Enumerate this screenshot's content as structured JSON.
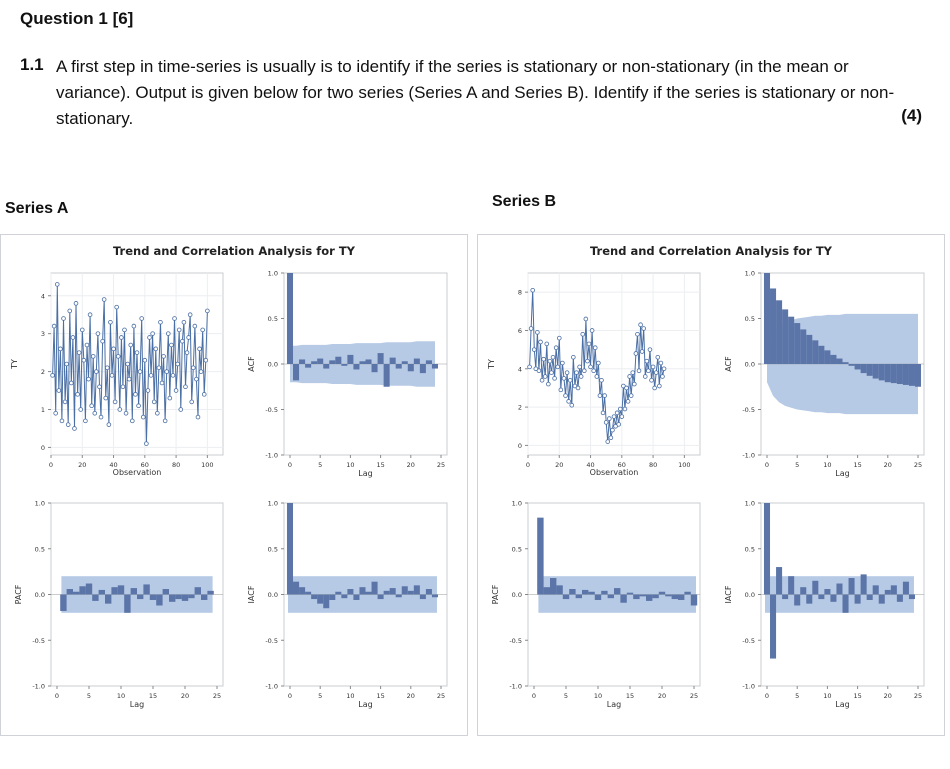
{
  "question": {
    "title": "Question 1 [6]",
    "number": "1.1",
    "body": "A first step in time-series is usually is to identify if the series is stationary or non-stationary (in the mean or variance). Output is given below for two series (Series A and Series B). Identify if the series is stationary or non-stationary.",
    "marks": "(4)"
  },
  "chart_data": [
    {
      "id": "series-a",
      "label": "Series A",
      "title": "Trend and Correlation Analysis for TY",
      "colors": {
        "line": "#4a6fa5",
        "bar": "#5b75a8",
        "band": "#a9c1e0"
      },
      "series_plot": {
        "type": "line",
        "xlabel": "Observation",
        "ylabel": "TY",
        "xlim": [
          0,
          110
        ],
        "ylim": [
          -0.2,
          4.6
        ],
        "xticks": [
          "0",
          "20",
          "40",
          "60",
          "80",
          "100"
        ],
        "yticks": [
          "0",
          "1",
          "2",
          "3",
          "4"
        ],
        "values": [
          1.9,
          3.2,
          0.9,
          4.3,
          1.5,
          2.6,
          0.7,
          3.4,
          1.2,
          2.2,
          0.6,
          3.6,
          1.7,
          2.9,
          0.5,
          3.8,
          1.4,
          2.5,
          1.0,
          3.1,
          2.3,
          0.7,
          2.7,
          1.8,
          3.5,
          1.1,
          2.4,
          0.9,
          2.0,
          3.0,
          1.6,
          0.8,
          2.8,
          3.9,
          1.3,
          2.1,
          0.6,
          3.3,
          1.9,
          2.6,
          1.2,
          3.7,
          2.4,
          1.0,
          2.9,
          1.6,
          3.1,
          0.9,
          2.2,
          1.8,
          2.7,
          0.7,
          3.2,
          1.4,
          2.5,
          1.1,
          2.0,
          3.4,
          0.8,
          2.3,
          0.1,
          1.5,
          2.9,
          1.9,
          3.0,
          1.2,
          2.6,
          0.9,
          2.1,
          3.3,
          1.7,
          2.4,
          0.7,
          2.0,
          3.0,
          1.3,
          2.7,
          1.9,
          3.4,
          1.5,
          2.2,
          3.1,
          1.0,
          2.8,
          3.3,
          1.6,
          2.5,
          2.9,
          3.5,
          1.2,
          2.1,
          3.2,
          1.8,
          0.8,
          2.6,
          2.0,
          3.1,
          1.4,
          2.3,
          3.6
        ]
      },
      "acf": {
        "type": "bar",
        "ylabel": "ACF",
        "xlabel": "Lag",
        "ylim": [
          -1,
          1
        ],
        "yticks": [
          "-1.0",
          "-0.5",
          "0.0",
          "0.5",
          "1.0"
        ],
        "xticks": [
          "0",
          "5",
          "10",
          "15",
          "20",
          "25"
        ],
        "values": [
          1.0,
          -0.18,
          0.05,
          -0.04,
          0.03,
          0.06,
          -0.05,
          0.04,
          0.08,
          -0.02,
          0.1,
          -0.06,
          0.03,
          0.05,
          -0.09,
          0.12,
          -0.25,
          0.07,
          -0.05,
          0.03,
          -0.08,
          0.06,
          -0.1,
          0.04,
          -0.05
        ],
        "band": [
          0.2,
          0.2,
          0.21,
          0.21,
          0.21,
          0.21,
          0.21,
          0.22,
          0.22,
          0.22,
          0.22,
          0.23,
          0.23,
          0.23,
          0.23,
          0.23,
          0.24,
          0.24,
          0.24,
          0.24,
          0.24,
          0.25,
          0.25,
          0.25,
          0.25
        ]
      },
      "pacf": {
        "type": "bar",
        "ylabel": "PACF",
        "xlabel": "Lag",
        "ylim": [
          -1,
          1
        ],
        "yticks": [
          "-1.0",
          "-0.5",
          "0.0",
          "0.5",
          "1.0"
        ],
        "xticks": [
          "0",
          "5",
          "10",
          "15",
          "20",
          "25"
        ],
        "values": [
          -0.18,
          0.06,
          0.03,
          0.09,
          0.12,
          -0.07,
          0.05,
          -0.1,
          0.08,
          0.1,
          -0.2,
          0.07,
          -0.05,
          0.11,
          -0.06,
          -0.12,
          0.06,
          -0.08,
          -0.05,
          -0.07,
          -0.04,
          0.08,
          -0.06,
          0.04
        ],
        "band": 0.2
      },
      "iacf": {
        "type": "bar",
        "ylabel": "IACF",
        "xlabel": "Lag",
        "ylim": [
          -1,
          1
        ],
        "yticks": [
          "-1.0",
          "-0.5",
          "0.0",
          "0.5",
          "1.0"
        ],
        "xticks": [
          "0",
          "5",
          "10",
          "15",
          "20",
          "25"
        ],
        "values": [
          1.0,
          0.14,
          0.08,
          0.03,
          -0.05,
          -0.1,
          -0.15,
          -0.06,
          0.03,
          -0.04,
          0.06,
          -0.06,
          0.08,
          0.03,
          0.14,
          -0.05,
          0.04,
          0.07,
          -0.03,
          0.09,
          0.04,
          0.1,
          -0.05,
          0.06,
          -0.03
        ],
        "band": 0.2
      }
    },
    {
      "id": "series-b",
      "label": "Series B",
      "title": "Trend and Correlation Analysis for TY",
      "colors": {
        "line": "#4a6fa5",
        "bar": "#5b75a8",
        "band": "#a9c1e0"
      },
      "series_plot": {
        "type": "line",
        "xlabel": "Observation",
        "ylabel": "TY",
        "xlim": [
          0,
          110
        ],
        "ylim": [
          -0.5,
          9.0
        ],
        "xticks": [
          "0",
          "20",
          "40",
          "60",
          "80",
          "100"
        ],
        "yticks": [
          "0",
          "2",
          "4",
          "6",
          "8"
        ],
        "values": [
          4.1,
          6.1,
          8.1,
          5.0,
          4.0,
          5.9,
          3.9,
          5.4,
          3.4,
          4.5,
          3.6,
          5.3,
          3.2,
          4.4,
          3.8,
          4.6,
          3.5,
          5.1,
          4.1,
          5.6,
          2.9,
          4.3,
          3.5,
          2.6,
          3.8,
          2.3,
          3.4,
          2.1,
          4.6,
          3.1,
          3.8,
          3.0,
          4.1,
          3.6,
          5.8,
          3.9,
          6.6,
          4.4,
          5.3,
          4.1,
          6.0,
          3.9,
          5.1,
          3.6,
          4.3,
          2.6,
          3.4,
          1.7,
          2.6,
          1.2,
          0.2,
          1.4,
          0.4,
          0.8,
          1.5,
          1.0,
          1.7,
          1.1,
          1.9,
          1.5,
          3.1,
          1.9,
          3.0,
          2.3,
          3.6,
          2.6,
          3.8,
          3.2,
          4.8,
          5.8,
          3.9,
          6.3,
          4.9,
          6.1,
          3.6,
          4.4,
          3.9,
          5.0,
          3.4,
          4.1,
          3.0,
          3.8,
          4.6,
          3.1,
          4.3,
          3.6,
          4.0
        ]
      },
      "acf": {
        "type": "bar",
        "ylabel": "ACF",
        "xlabel": "Lag",
        "ylim": [
          -1,
          1
        ],
        "yticks": [
          "-1.0",
          "-0.5",
          "0.0",
          "0.5",
          "1.0"
        ],
        "xticks": [
          "0",
          "5",
          "10",
          "15",
          "20",
          "25"
        ],
        "values": [
          1.0,
          0.83,
          0.7,
          0.6,
          0.52,
          0.45,
          0.38,
          0.32,
          0.26,
          0.2,
          0.15,
          0.1,
          0.06,
          0.02,
          -0.02,
          -0.06,
          -0.1,
          -0.13,
          -0.16,
          -0.18,
          -0.2,
          -0.21,
          -0.22,
          -0.23,
          -0.24,
          -0.25
        ],
        "band": [
          0.2,
          0.35,
          0.42,
          0.46,
          0.48,
          0.5,
          0.51,
          0.52,
          0.53,
          0.53,
          0.54,
          0.54,
          0.54,
          0.55,
          0.55,
          0.55,
          0.55,
          0.55,
          0.55,
          0.55,
          0.55,
          0.55,
          0.55,
          0.55,
          0.55,
          0.55
        ]
      },
      "pacf": {
        "type": "bar",
        "ylabel": "PACF",
        "xlabel": "Lag",
        "ylim": [
          -1,
          1
        ],
        "yticks": [
          "-1.0",
          "-0.5",
          "0.0",
          "0.5",
          "1.0"
        ],
        "xticks": [
          "0",
          "5",
          "10",
          "15",
          "20",
          "25"
        ],
        "values": [
          0.84,
          0.08,
          0.18,
          0.1,
          -0.05,
          0.06,
          -0.04,
          0.05,
          0.03,
          -0.06,
          0.04,
          -0.04,
          0.07,
          -0.09,
          0.02,
          -0.05,
          -0.02,
          -0.07,
          -0.04,
          0.03,
          -0.02,
          -0.05,
          -0.06,
          0.03,
          -0.12
        ],
        "band": 0.2
      },
      "iacf": {
        "type": "bar",
        "ylabel": "IACF",
        "xlabel": "Lag",
        "ylim": [
          -1,
          1
        ],
        "yticks": [
          "-1.0",
          "-0.5",
          "0.0",
          "0.5",
          "1.0"
        ],
        "xticks": [
          "0",
          "5",
          "10",
          "15",
          "20",
          "25"
        ],
        "values": [
          1.0,
          -0.7,
          0.3,
          -0.05,
          0.2,
          -0.12,
          0.08,
          -0.1,
          0.15,
          -0.05,
          0.06,
          -0.08,
          0.12,
          -0.2,
          0.18,
          -0.1,
          0.22,
          -0.06,
          0.1,
          -0.1,
          0.05,
          0.1,
          -0.08,
          0.14,
          -0.05
        ],
        "band": 0.2
      }
    }
  ]
}
